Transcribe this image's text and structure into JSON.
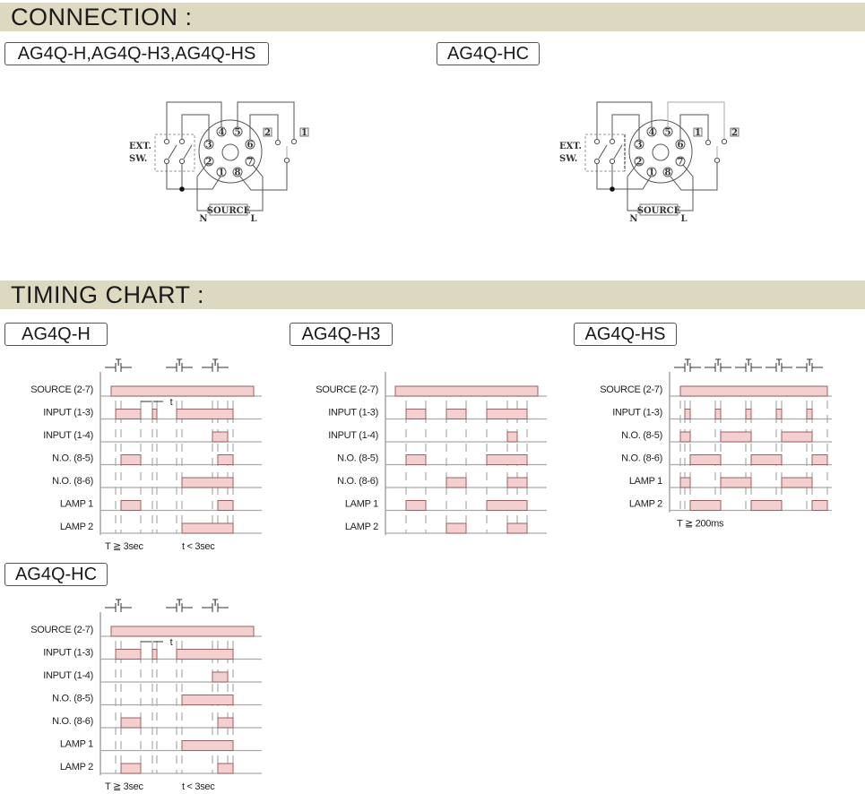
{
  "connection": {
    "header": "CONNECTION :",
    "diagrams": [
      {
        "title": "AG4Q-H,AG4Q-H3,AG4Q-HS",
        "lamp_left": "2",
        "lamp_right": "1"
      },
      {
        "title": "AG4Q-HC",
        "lamp_left": "1",
        "lamp_right": "2"
      }
    ],
    "ext_sw": [
      "EXT.",
      "SW."
    ],
    "source": "SOURCE",
    "n": "N",
    "l": "L",
    "pins": [
      "1",
      "2",
      "3",
      "4",
      "5",
      "6",
      "7",
      "8"
    ]
  },
  "timing": {
    "header": "TIMING CHART :",
    "charts": [
      {
        "title": "AG4Q-H",
        "rows": [
          "SOURCE (2-7)",
          "INPUT (1-3)",
          "INPUT (1-4)",
          "N.O.  (8-5)",
          "N.O.  (8-6)",
          "LAMP  1",
          "LAMP  2"
        ],
        "T": "T",
        "t": "t",
        "notes": [
          "T ≧ 3sec",
          "t < 3sec"
        ]
      },
      {
        "title": "AG4Q-H3",
        "rows": [
          "SOURCE (2-7)",
          "INPUT (1-3)",
          "INPUT (1-4)",
          "N.O.  (8-5)",
          "N.O.  (8-6)",
          "LAMP  1",
          "LAMP  2"
        ],
        "notes": []
      },
      {
        "title": "AG4Q-HS",
        "rows": [
          "SOURCE (2-7)",
          "INPUT (1-3)",
          "N.O.  (8-5)",
          "N.O.  (8-6)",
          "LAMP  1",
          "LAMP  2"
        ],
        "T": "T",
        "notes": [
          "T ≧ 200ms"
        ]
      },
      {
        "title": "AG4Q-HC",
        "rows": [
          "SOURCE (2-7)",
          "INPUT (1-3)",
          "INPUT (1-4)",
          "N.O.  (8-5)",
          "N.O.  (8-6)",
          "LAMP  1",
          "LAMP  2"
        ],
        "T": "T",
        "t": "t",
        "notes": [
          "T ≧ 3sec",
          "t < 3sec"
        ]
      }
    ]
  },
  "colors": {
    "band": "#dcd9c0",
    "pulse_fill": "#f4cfcf",
    "pulse_stroke": "#9a6262"
  }
}
